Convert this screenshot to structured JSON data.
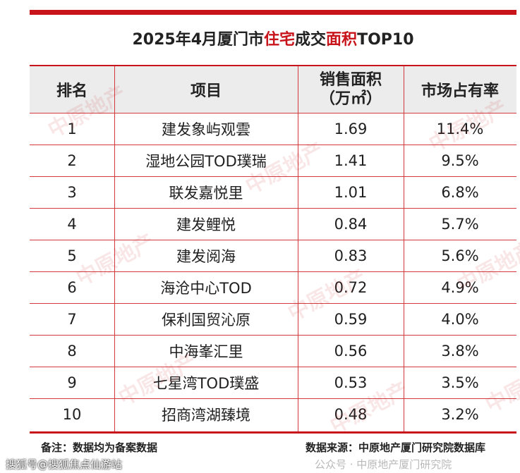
{
  "title": {
    "prefix": "2025年4月厦门市",
    "hl1": "住宅",
    "mid": "成交",
    "hl2": "面积",
    "suffix": "TOP10"
  },
  "table": {
    "headers": [
      "排名",
      "项目",
      "销售面积",
      "（万㎡）",
      "市场占有率"
    ]
  },
  "chart_data": {
    "type": "table",
    "title": "2025年4月厦门市住宅成交面积TOP10",
    "columns": [
      "排名",
      "项目",
      "销售面积（万㎡）",
      "市场占有率"
    ],
    "rows": [
      [
        "1",
        "建发象屿观雲",
        "1.69",
        "11.4%"
      ],
      [
        "2",
        "湿地公园TOD璞瑞",
        "1.41",
        "9.5%"
      ],
      [
        "3",
        "联发嘉悦里",
        "1.01",
        "6.8%"
      ],
      [
        "4",
        "建发鲤悦",
        "0.84",
        "5.7%"
      ],
      [
        "5",
        "建发阅海",
        "0.83",
        "5.6%"
      ],
      [
        "6",
        "海沧中心TOD",
        "0.72",
        "4.9%"
      ],
      [
        "7",
        "保利国贸沁原",
        "0.59",
        "4.0%"
      ],
      [
        "8",
        "中海峯汇里",
        "0.56",
        "3.8%"
      ],
      [
        "9",
        "七星湾TOD璞盛",
        "0.53",
        "3.5%"
      ],
      [
        "10",
        "招商湾湖臻境",
        "0.48",
        "3.2%"
      ]
    ]
  },
  "footer": {
    "note": "备注：数据均为备案数据",
    "source": "数据来源：中原地产厦门研究院数据库"
  },
  "overlay": {
    "left": "搜狐号@搜狐焦点仙游站",
    "right": "公众号 · 中原地产厦门研究院"
  },
  "watermark": "中原地产",
  "colors": {
    "accent": "#c8141b",
    "header_bg": "#ececec"
  }
}
